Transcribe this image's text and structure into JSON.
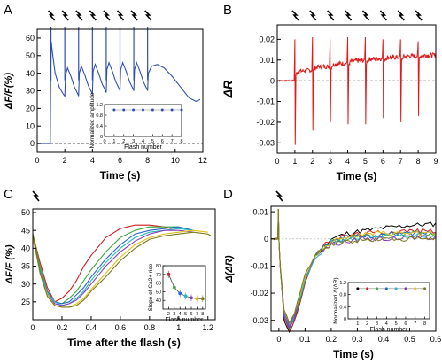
{
  "chart_data": [
    {
      "panel": "A",
      "type": "line",
      "xlabel": "Time (s)",
      "ylabel": "ΔF/F(%)",
      "xlim": [
        0,
        12
      ],
      "ylim": [
        -5,
        65
      ],
      "xticks": [
        0,
        2,
        4,
        6,
        8,
        10,
        12
      ],
      "yticks": [
        0,
        10,
        20,
        30,
        40,
        50,
        60
      ],
      "flash_times": [
        1,
        2,
        3,
        4,
        5,
        6,
        7,
        8
      ],
      "dashed_baseline": 0,
      "color": "#2f4fb0",
      "series": [
        {
          "x": [
            0,
            0.95,
            0.98,
            1.02,
            1.1,
            1.3,
            1.6,
            1.9,
            2.0,
            2.05,
            2.2,
            2.45,
            2.7,
            2.95,
            3.0,
            3.05,
            3.2,
            3.45,
            3.7,
            3.95,
            4.0,
            4.05,
            4.2,
            4.45,
            4.7,
            4.95,
            5.0,
            5.05,
            5.2,
            5.45,
            5.7,
            5.95,
            6.0,
            6.05,
            6.2,
            6.45,
            6.7,
            6.95,
            7.0,
            7.05,
            7.2,
            7.45,
            7.7,
            7.95,
            8.0,
            8.05,
            8.3,
            8.7,
            9.2,
            9.8,
            10.4,
            11.0,
            11.5,
            11.8
          ],
          "y": [
            0,
            0,
            40,
            58,
            52,
            40,
            32,
            28,
            27,
            39,
            43,
            38,
            32,
            28,
            27,
            40,
            44,
            39,
            33,
            29,
            28,
            41,
            45,
            40,
            34,
            30,
            29,
            42,
            46,
            41,
            35,
            31,
            30,
            42,
            46,
            41,
            35,
            31,
            30,
            42,
            46,
            41,
            35,
            31,
            30,
            40,
            44,
            45,
            43,
            38,
            32,
            26,
            24,
            25
          ]
        }
      ],
      "inset": {
        "type": "scatter",
        "xlabel": "Flash number",
        "ylabel": "Normalized amplitude",
        "xlim": [
          0,
          8
        ],
        "ylim": [
          0,
          1.2
        ],
        "xticks": [
          0,
          1,
          2,
          3,
          4,
          5,
          6,
          7,
          8
        ],
        "yticks": [
          0.0,
          0.4,
          0.8,
          1.2
        ],
        "x": [
          1,
          2,
          3,
          4,
          5,
          6,
          7,
          8
        ],
        "y": [
          1.0,
          1.0,
          1.0,
          1.0,
          1.0,
          1.0,
          1.0,
          1.0
        ]
      }
    },
    {
      "panel": "B",
      "type": "line",
      "xlabel": "Time (s)",
      "ylabel": "ΔR",
      "xlim": [
        0,
        9
      ],
      "ylim": [
        -0.035,
        0.027
      ],
      "xticks": [
        0,
        1,
        2,
        3,
        4,
        5,
        6,
        7,
        8,
        9
      ],
      "yticks": [
        -0.03,
        -0.02,
        -0.01,
        0.0,
        0.01,
        0.02
      ],
      "flash_times": [
        1,
        2,
        3,
        4,
        5,
        6,
        7,
        8
      ],
      "dashed_baseline": 0,
      "color": "#e01b1b",
      "flash_dip": [
        -0.031,
        -0.024,
        -0.02,
        -0.021,
        -0.021,
        -0.018,
        -0.02,
        -0.017
      ],
      "flash_peak": [
        0.02,
        0.021,
        0.02,
        0.021,
        0.021,
        0.02,
        0.02,
        0.019
      ],
      "plateau": [
        0.0045,
        0.0065,
        0.008,
        0.0095,
        0.0105,
        0.0112,
        0.0118,
        0.0123,
        0.0125
      ]
    },
    {
      "panel": "C",
      "type": "line",
      "xlabel": "Time after the flash (s)",
      "ylabel": "ΔF/F (%)",
      "xlim": [
        0,
        1.25
      ],
      "ylim": [
        20,
        51
      ],
      "xticks": [
        0.0,
        0.2,
        0.4,
        0.6,
        0.8,
        1.0,
        1.2
      ],
      "yticks": [
        25,
        30,
        35,
        40,
        45,
        50
      ],
      "series": [
        {
          "color": "#d01d1d",
          "x": [
            0.0,
            0.05,
            0.1,
            0.15,
            0.2,
            0.25,
            0.3,
            0.35,
            0.4,
            0.5,
            0.6,
            0.7,
            0.8,
            0.9,
            0.95
          ],
          "y": [
            44,
            36,
            29,
            25,
            26,
            28,
            31,
            35,
            38,
            43,
            45.5,
            46.5,
            46.5,
            46,
            45.5
          ]
        },
        {
          "color": "#3aa83a",
          "x": [
            0.0,
            0.05,
            0.1,
            0.15,
            0.2,
            0.25,
            0.3,
            0.35,
            0.4,
            0.5,
            0.6,
            0.7,
            0.8,
            0.9,
            1.0
          ],
          "y": [
            44,
            35,
            28,
            25,
            24.5,
            26,
            28,
            31,
            34,
            39,
            43,
            45,
            46,
            46,
            46
          ]
        },
        {
          "color": "#2868c8",
          "x": [
            0.0,
            0.05,
            0.1,
            0.15,
            0.2,
            0.25,
            0.3,
            0.35,
            0.4,
            0.5,
            0.6,
            0.7,
            0.8,
            0.9,
            1.0,
            1.1
          ],
          "y": [
            43.5,
            34,
            28,
            25,
            24.5,
            25,
            27,
            29,
            32,
            37,
            41,
            44,
            45,
            45.5,
            46,
            45
          ]
        },
        {
          "color": "#25b8c8",
          "x": [
            0.0,
            0.05,
            0.1,
            0.15,
            0.2,
            0.25,
            0.3,
            0.35,
            0.4,
            0.5,
            0.6,
            0.7,
            0.8,
            0.9,
            1.0,
            1.1
          ],
          "y": [
            43,
            34,
            27.5,
            25,
            24,
            24.5,
            26,
            28,
            31,
            36,
            40,
            43,
            44.5,
            45,
            45.5,
            45
          ]
        },
        {
          "color": "#8a3fb0",
          "x": [
            0.0,
            0.05,
            0.1,
            0.15,
            0.2,
            0.25,
            0.3,
            0.35,
            0.4,
            0.5,
            0.6,
            0.7,
            0.8,
            0.9,
            1.0,
            1.1
          ],
          "y": [
            43,
            33.5,
            27,
            24.5,
            24,
            24.5,
            25.5,
            27.5,
            30,
            35,
            39,
            42,
            44,
            45,
            45,
            44.5
          ]
        },
        {
          "color": "#e0c01a",
          "x": [
            0.0,
            0.05,
            0.1,
            0.15,
            0.2,
            0.25,
            0.3,
            0.35,
            0.4,
            0.5,
            0.6,
            0.7,
            0.8,
            0.9,
            1.0,
            1.1,
            1.2
          ],
          "y": [
            43,
            33,
            27,
            24,
            23.5,
            23.5,
            24.5,
            26,
            28.5,
            33,
            37.5,
            41,
            43,
            44,
            44.5,
            45,
            44.5
          ]
        },
        {
          "color": "#7a7a1a",
          "x": [
            0.0,
            0.05,
            0.1,
            0.15,
            0.2,
            0.25,
            0.3,
            0.35,
            0.4,
            0.5,
            0.6,
            0.7,
            0.8,
            0.9,
            1.0,
            1.1,
            1.2,
            1.22
          ],
          "y": [
            44,
            33,
            26.5,
            24,
            23.5,
            23.5,
            24,
            25.5,
            28,
            32,
            36.5,
            40,
            42.5,
            43.5,
            44,
            44.5,
            44,
            43.5
          ]
        }
      ],
      "inset": {
        "type": "scatter",
        "xlabel": "Flash number",
        "ylabel": "Slope of Ca2+ rise",
        "xlim": [
          1,
          8.5
        ],
        "ylim": [
          30,
          80
        ],
        "xticks": [
          2,
          3,
          4,
          5,
          6,
          7,
          8
        ],
        "yticks": [
          40,
          50,
          60,
          70,
          80
        ],
        "x": [
          2,
          3,
          4,
          5,
          6,
          7,
          8
        ],
        "y": [
          70,
          55,
          48,
          45,
          43,
          42,
          42
        ],
        "colors": [
          "#d01d1d",
          "#3aa83a",
          "#2868c8",
          "#25b8c8",
          "#8a3fb0",
          "#e0c01a",
          "#7a7a1a"
        ]
      }
    },
    {
      "panel": "D",
      "type": "line",
      "xlabel": "Time (s)",
      "ylabel": "Δ(ΔR)",
      "xlim": [
        -0.03,
        0.6
      ],
      "ylim": [
        -0.034,
        0.012
      ],
      "xticks": [
        0.0,
        0.1,
        0.2,
        0.3,
        0.4,
        0.5,
        0.6
      ],
      "yticks": [
        -0.03,
        -0.02,
        -0.01,
        0.0,
        0.01
      ],
      "series": [
        {
          "color": "#000000",
          "x": [
            -0.03,
            0.0,
            0.005,
            0.02,
            0.04,
            0.06,
            0.08,
            0.1,
            0.14,
            0.2,
            0.26,
            0.32,
            0.4,
            0.5,
            0.6
          ],
          "y": [
            0.0,
            0.0,
            -0.01,
            -0.03,
            -0.0345,
            -0.03,
            -0.024,
            -0.016,
            -0.006,
            0.0,
            0.002,
            0.003,
            0.004,
            0.005,
            0.0055
          ]
        },
        {
          "color": "#d01d1d",
          "x": [
            -0.03,
            0.0,
            0.005,
            0.02,
            0.04,
            0.06,
            0.08,
            0.1,
            0.14,
            0.2,
            0.26,
            0.32,
            0.4,
            0.5,
            0.6
          ],
          "y": [
            0.0,
            0.0,
            -0.01,
            -0.029,
            -0.034,
            -0.03,
            -0.024,
            -0.016,
            -0.006,
            0.0,
            0.001,
            0.002,
            0.0025,
            0.003,
            0.003
          ]
        },
        {
          "color": "#3aa83a",
          "x": [
            -0.03,
            0.0,
            0.005,
            0.02,
            0.04,
            0.06,
            0.08,
            0.1,
            0.14,
            0.2,
            0.26,
            0.32,
            0.4,
            0.5,
            0.6
          ],
          "y": [
            0.0,
            0.0,
            -0.01,
            -0.028,
            -0.033,
            -0.029,
            -0.023,
            -0.015,
            -0.006,
            -0.001,
            0.0,
            0.001,
            0.0015,
            0.002,
            0.002
          ]
        },
        {
          "color": "#2868c8",
          "x": [
            -0.03,
            0.0,
            0.005,
            0.02,
            0.04,
            0.06,
            0.08,
            0.1,
            0.14,
            0.2,
            0.26,
            0.32,
            0.4,
            0.5,
            0.6
          ],
          "y": [
            0.0,
            0.0,
            -0.01,
            -0.028,
            -0.033,
            -0.029,
            -0.022,
            -0.015,
            -0.006,
            -0.001,
            0.0005,
            0.001,
            0.0015,
            0.002,
            0.0025
          ]
        },
        {
          "color": "#25b8c8",
          "x": [
            -0.03,
            0.0,
            0.005,
            0.02,
            0.04,
            0.06,
            0.08,
            0.1,
            0.14,
            0.2,
            0.26,
            0.32,
            0.4,
            0.5,
            0.6
          ],
          "y": [
            0.0,
            0.0,
            -0.01,
            -0.027,
            -0.032,
            -0.028,
            -0.022,
            -0.015,
            -0.007,
            -0.001,
            0.0,
            0.0005,
            0.001,
            0.001,
            0.0015
          ]
        },
        {
          "color": "#8a3fb0",
          "x": [
            -0.03,
            0.0,
            0.005,
            0.02,
            0.04,
            0.06,
            0.08,
            0.1,
            0.14,
            0.2,
            0.26,
            0.32,
            0.4,
            0.5,
            0.6
          ],
          "y": [
            0.0,
            0.0,
            -0.01,
            -0.027,
            -0.032,
            -0.028,
            -0.021,
            -0.014,
            -0.006,
            -0.002,
            -0.001,
            0.0,
            0.0,
            0.0005,
            0.0005
          ]
        },
        {
          "color": "#e0c01a",
          "x": [
            -0.03,
            0.0,
            0.005,
            0.02,
            0.04,
            0.06,
            0.08,
            0.1,
            0.14,
            0.2,
            0.26,
            0.32,
            0.4,
            0.5,
            0.6
          ],
          "y": [
            0.0,
            0.0,
            -0.01,
            -0.026,
            -0.031,
            -0.027,
            -0.021,
            -0.014,
            -0.006,
            -0.001,
            0.001,
            0.0015,
            0.002,
            0.002,
            0.002
          ]
        },
        {
          "color": "#7a7a1a",
          "x": [
            -0.03,
            0.0,
            0.005,
            0.02,
            0.04,
            0.06,
            0.08,
            0.1,
            0.14,
            0.2,
            0.26,
            0.32,
            0.4,
            0.5,
            0.6
          ],
          "y": [
            0.0,
            0.0,
            -0.01,
            -0.026,
            -0.031,
            -0.027,
            -0.02,
            -0.013,
            -0.006,
            -0.002,
            -0.001,
            -0.0005,
            0.0,
            0.0,
            0.0
          ]
        }
      ],
      "inset": {
        "type": "scatter",
        "xlabel": "Flash number",
        "ylabel": "Normalized Δ(ΔR)",
        "xlim": [
          0,
          8.5
        ],
        "ylim": [
          0,
          1.2
        ],
        "xticks": [
          1,
          2,
          3,
          4,
          5,
          6,
          7,
          8
        ],
        "yticks": [
          0.0,
          0.4,
          0.8,
          1.2
        ],
        "x": [
          1,
          2,
          3,
          4,
          5,
          6,
          7,
          8
        ],
        "y": [
          1.0,
          1.0,
          1.0,
          1.0,
          1.0,
          1.0,
          1.0,
          1.0
        ],
        "colors": [
          "#000000",
          "#d01d1d",
          "#3aa83a",
          "#2868c8",
          "#25b8c8",
          "#8a3fb0",
          "#e0c01a",
          "#7a7a1a"
        ]
      }
    }
  ]
}
